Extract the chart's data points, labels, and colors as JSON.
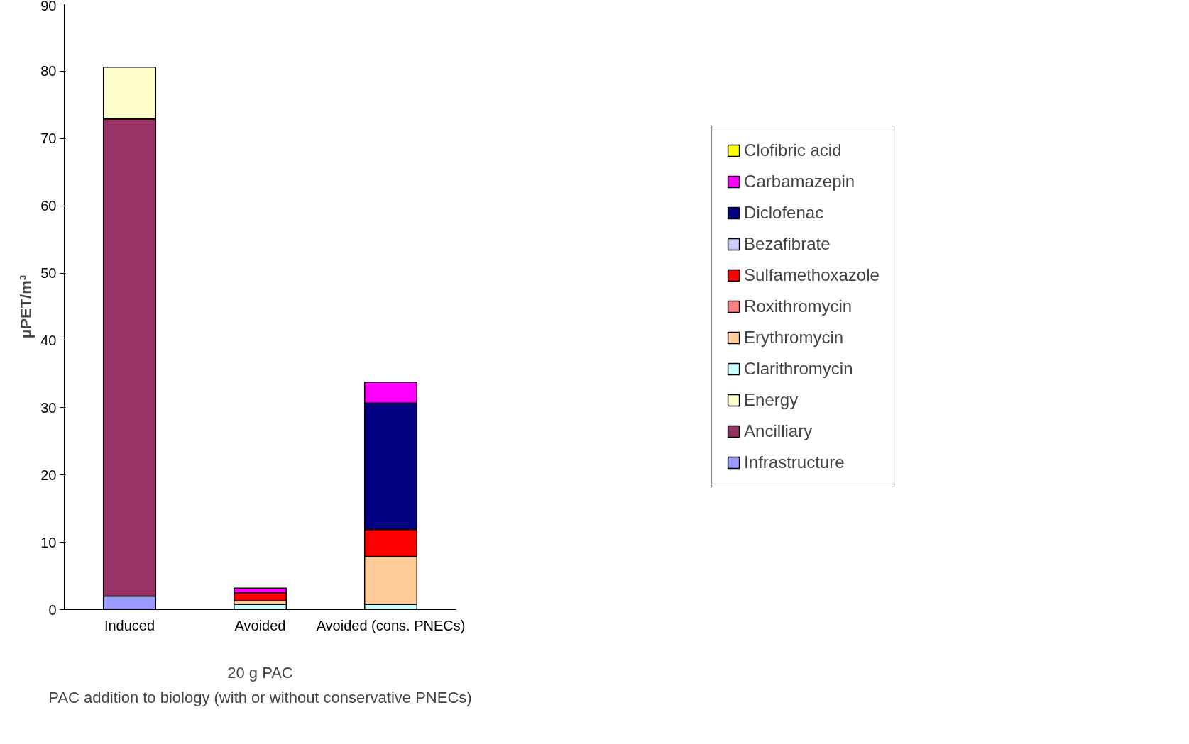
{
  "chart_data": {
    "type": "bar",
    "stacked": true,
    "ylabel": "μPET/m³",
    "xlabel": "20 g PAC",
    "annotations": [
      "PAC addition to biology (with or without conservative PNECs)"
    ],
    "categories": [
      "Induced",
      "Avoided",
      "Avoided (cons. PNECs)"
    ],
    "ylim": [
      0,
      90
    ],
    "yticks": [
      0,
      10,
      20,
      30,
      40,
      50,
      60,
      70,
      80,
      90
    ],
    "grid": false,
    "legend": "right",
    "series": [
      {
        "name": "Infrastructure",
        "color": "#9999ff",
        "values": [
          2.0,
          null,
          null
        ]
      },
      {
        "name": "Ancilliary",
        "color": "#993366",
        "values": [
          70.9,
          null,
          null
        ]
      },
      {
        "name": "Energy",
        "color": "#ffffcc",
        "values": [
          7.7,
          null,
          null
        ]
      },
      {
        "name": "Clarithromycin",
        "color": "#ccffff",
        "values": [
          null,
          0.8,
          0.8
        ]
      },
      {
        "name": "Erythromycin",
        "color": "#ffcc99",
        "values": [
          null,
          0.5,
          7.1
        ]
      },
      {
        "name": "Roxithromycin",
        "color": "#ff8080",
        "values": [
          null,
          null,
          null
        ]
      },
      {
        "name": "Sulfamethoxazole",
        "color": "#ff0000",
        "values": [
          null,
          1.2,
          4.0
        ]
      },
      {
        "name": "Bezafibrate",
        "color": "#ccccff",
        "values": [
          null,
          null,
          null
        ]
      },
      {
        "name": "Diclofenac",
        "color": "#000080",
        "values": [
          null,
          null,
          18.8
        ]
      },
      {
        "name": "Carbamazepin",
        "color": "#ff00ff",
        "values": [
          null,
          0.7,
          3.1
        ]
      },
      {
        "name": "Clofibric acid",
        "color": "#ffff00",
        "values": [
          null,
          null,
          null
        ]
      }
    ]
  }
}
